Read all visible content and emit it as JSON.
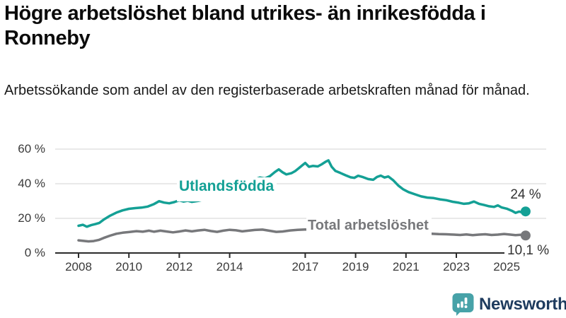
{
  "header": {
    "title": "Högre arbetslöshet bland utrikes- än inrikesfödda i Ronneby",
    "subtitle": "Arbetssökande som andel av den registerbaserade arbetskraften månad för månad."
  },
  "chart_data": {
    "type": "line",
    "title": "Högre arbetslöshet bland utrikes- än inrikesfödda i Ronneby",
    "subtitle": "Arbetssökande som andel av den registerbaserade arbetskraften månad för månad.",
    "x_axis": {
      "label": "",
      "min": 2007.5,
      "max": 2026,
      "ticks": [
        {
          "year": 2008,
          "label": "2008"
        },
        {
          "year": 2010,
          "label": "2010"
        },
        {
          "year": 2012,
          "label": "2012"
        },
        {
          "year": 2014,
          "label": "2014"
        },
        {
          "year": 2017,
          "label": "2017"
        },
        {
          "year": 2019,
          "label": "2019"
        },
        {
          "year": 2021,
          "label": "2021"
        },
        {
          "year": 2023,
          "label": "2023"
        },
        {
          "year": 2025,
          "label": "2025"
        }
      ]
    },
    "y_axis": {
      "label": "",
      "min": 0,
      "max": 60,
      "unit": "%",
      "ticks": [
        {
          "value": 60,
          "label": "60 %"
        },
        {
          "value": 40,
          "label": "40 %"
        },
        {
          "value": 20,
          "label": "20 %"
        },
        {
          "value": 0,
          "label": "0 %"
        }
      ]
    },
    "style": {
      "grid_color": "#dcdcdc",
      "axis_color": "#2b2b2b",
      "grid_on": true,
      "legend_position": "inline-labels"
    },
    "series": [
      {
        "name": "Utlandsfödda",
        "color": "#14a095",
        "end_label": "24 %",
        "end_value": 24,
        "points": [
          [
            2008.0,
            15.7
          ],
          [
            2008.17,
            16.3
          ],
          [
            2008.33,
            15.2
          ],
          [
            2008.5,
            16.1
          ],
          [
            2008.67,
            16.7
          ],
          [
            2008.83,
            17.4
          ],
          [
            2009.0,
            19.3
          ],
          [
            2009.25,
            21.5
          ],
          [
            2009.5,
            23.3
          ],
          [
            2009.75,
            24.6
          ],
          [
            2010.0,
            25.5
          ],
          [
            2010.25,
            25.9
          ],
          [
            2010.5,
            26.2
          ],
          [
            2010.75,
            26.8
          ],
          [
            2011.0,
            28.3
          ],
          [
            2011.2,
            29.9
          ],
          [
            2011.4,
            29.1
          ],
          [
            2011.6,
            28.7
          ],
          [
            2011.8,
            29.4
          ],
          [
            2012.0,
            30.4
          ],
          [
            2012.17,
            29.7
          ],
          [
            2012.33,
            30.2
          ],
          [
            2012.5,
            29.5
          ],
          [
            2012.75,
            30.1
          ],
          [
            2013.0,
            30.9
          ],
          [
            2013.25,
            31.7
          ],
          [
            2013.5,
            32.8
          ],
          [
            2013.75,
            34.0
          ],
          [
            2014.0,
            35.6
          ],
          [
            2014.25,
            37.5
          ],
          [
            2014.5,
            39.4
          ],
          [
            2014.75,
            41.0
          ],
          [
            2015.0,
            42.5
          ],
          [
            2015.2,
            43.6
          ],
          [
            2015.4,
            43.0
          ],
          [
            2015.6,
            44.4
          ],
          [
            2015.8,
            46.8
          ],
          [
            2015.95,
            48.3
          ],
          [
            2016.1,
            46.6
          ],
          [
            2016.25,
            45.4
          ],
          [
            2016.45,
            46.1
          ],
          [
            2016.6,
            47.3
          ],
          [
            2016.75,
            49.0
          ],
          [
            2016.9,
            50.8
          ],
          [
            2017.0,
            52.0
          ],
          [
            2017.15,
            49.8
          ],
          [
            2017.3,
            50.3
          ],
          [
            2017.5,
            50.0
          ],
          [
            2017.65,
            51.2
          ],
          [
            2017.8,
            52.6
          ],
          [
            2017.92,
            53.5
          ],
          [
            2018.05,
            49.8
          ],
          [
            2018.2,
            47.4
          ],
          [
            2018.4,
            46.2
          ],
          [
            2018.6,
            44.9
          ],
          [
            2018.8,
            43.7
          ],
          [
            2018.95,
            43.4
          ],
          [
            2019.1,
            44.6
          ],
          [
            2019.3,
            43.8
          ],
          [
            2019.5,
            42.7
          ],
          [
            2019.7,
            42.3
          ],
          [
            2019.85,
            43.9
          ],
          [
            2020.0,
            44.7
          ],
          [
            2020.15,
            43.6
          ],
          [
            2020.3,
            44.2
          ],
          [
            2020.5,
            41.9
          ],
          [
            2020.7,
            38.9
          ],
          [
            2020.9,
            36.7
          ],
          [
            2021.1,
            35.2
          ],
          [
            2021.35,
            33.9
          ],
          [
            2021.6,
            32.7
          ],
          [
            2021.85,
            32.0
          ],
          [
            2022.1,
            31.7
          ],
          [
            2022.35,
            31.0
          ],
          [
            2022.6,
            30.5
          ],
          [
            2022.85,
            29.6
          ],
          [
            2023.1,
            29.0
          ],
          [
            2023.3,
            28.4
          ],
          [
            2023.5,
            28.7
          ],
          [
            2023.7,
            29.7
          ],
          [
            2023.9,
            28.4
          ],
          [
            2024.1,
            27.7
          ],
          [
            2024.3,
            27.0
          ],
          [
            2024.5,
            26.6
          ],
          [
            2024.65,
            27.5
          ],
          [
            2024.8,
            26.3
          ],
          [
            2025.0,
            25.6
          ],
          [
            2025.2,
            24.4
          ],
          [
            2025.35,
            23.2
          ],
          [
            2025.5,
            23.9
          ],
          [
            2025.65,
            23.3
          ],
          [
            2025.75,
            24.0
          ]
        ]
      },
      {
        "name": "Total arbetslöshet",
        "color": "#77787b",
        "end_label": "10,1 %",
        "end_value": 10.1,
        "points": [
          [
            2008.0,
            7.3
          ],
          [
            2008.2,
            7.0
          ],
          [
            2008.4,
            6.7
          ],
          [
            2008.6,
            6.9
          ],
          [
            2008.8,
            7.5
          ],
          [
            2009.0,
            8.7
          ],
          [
            2009.25,
            10.0
          ],
          [
            2009.5,
            11.1
          ],
          [
            2009.75,
            11.7
          ],
          [
            2010.0,
            12.1
          ],
          [
            2010.3,
            12.6
          ],
          [
            2010.55,
            12.3
          ],
          [
            2010.8,
            12.9
          ],
          [
            2011.0,
            12.3
          ],
          [
            2011.25,
            12.9
          ],
          [
            2011.5,
            12.4
          ],
          [
            2011.75,
            11.9
          ],
          [
            2012.0,
            12.4
          ],
          [
            2012.25,
            13.0
          ],
          [
            2012.5,
            12.5
          ],
          [
            2012.75,
            13.0
          ],
          [
            2013.0,
            13.4
          ],
          [
            2013.25,
            12.7
          ],
          [
            2013.5,
            12.2
          ],
          [
            2013.75,
            12.9
          ],
          [
            2014.0,
            13.4
          ],
          [
            2014.25,
            13.1
          ],
          [
            2014.5,
            12.5
          ],
          [
            2014.75,
            12.9
          ],
          [
            2015.0,
            13.3
          ],
          [
            2015.3,
            13.5
          ],
          [
            2015.6,
            12.8
          ],
          [
            2015.85,
            12.2
          ],
          [
            2016.1,
            12.4
          ],
          [
            2016.4,
            13.0
          ],
          [
            2016.7,
            13.4
          ],
          [
            2017.0,
            13.6
          ],
          [
            2017.25,
            13.1
          ],
          [
            2017.5,
            13.4
          ],
          [
            2017.75,
            12.9
          ],
          [
            2018.0,
            12.5
          ],
          [
            2018.3,
            12.9
          ],
          [
            2018.6,
            13.2
          ],
          [
            2018.9,
            12.4
          ],
          [
            2019.2,
            12.1
          ],
          [
            2019.5,
            12.5
          ],
          [
            2019.8,
            11.9
          ],
          [
            2020.05,
            12.2
          ],
          [
            2020.3,
            13.4
          ],
          [
            2020.55,
            13.0
          ],
          [
            2020.8,
            12.6
          ],
          [
            2021.1,
            12.1
          ],
          [
            2021.4,
            11.7
          ],
          [
            2021.7,
            11.3
          ],
          [
            2022.0,
            11.1
          ],
          [
            2022.3,
            10.9
          ],
          [
            2022.6,
            10.8
          ],
          [
            2022.9,
            10.6
          ],
          [
            2023.15,
            10.4
          ],
          [
            2023.4,
            10.7
          ],
          [
            2023.65,
            10.3
          ],
          [
            2023.9,
            10.6
          ],
          [
            2024.15,
            10.8
          ],
          [
            2024.4,
            10.4
          ],
          [
            2024.65,
            10.6
          ],
          [
            2024.9,
            11.0
          ],
          [
            2025.15,
            10.6
          ],
          [
            2025.35,
            10.3
          ],
          [
            2025.55,
            10.5
          ],
          [
            2025.75,
            10.1
          ]
        ]
      }
    ]
  },
  "branding": {
    "logo_text": "Newsworthy",
    "logo_text_color": "#1e3b5e",
    "logo_icon_color": "#47a2a8"
  }
}
